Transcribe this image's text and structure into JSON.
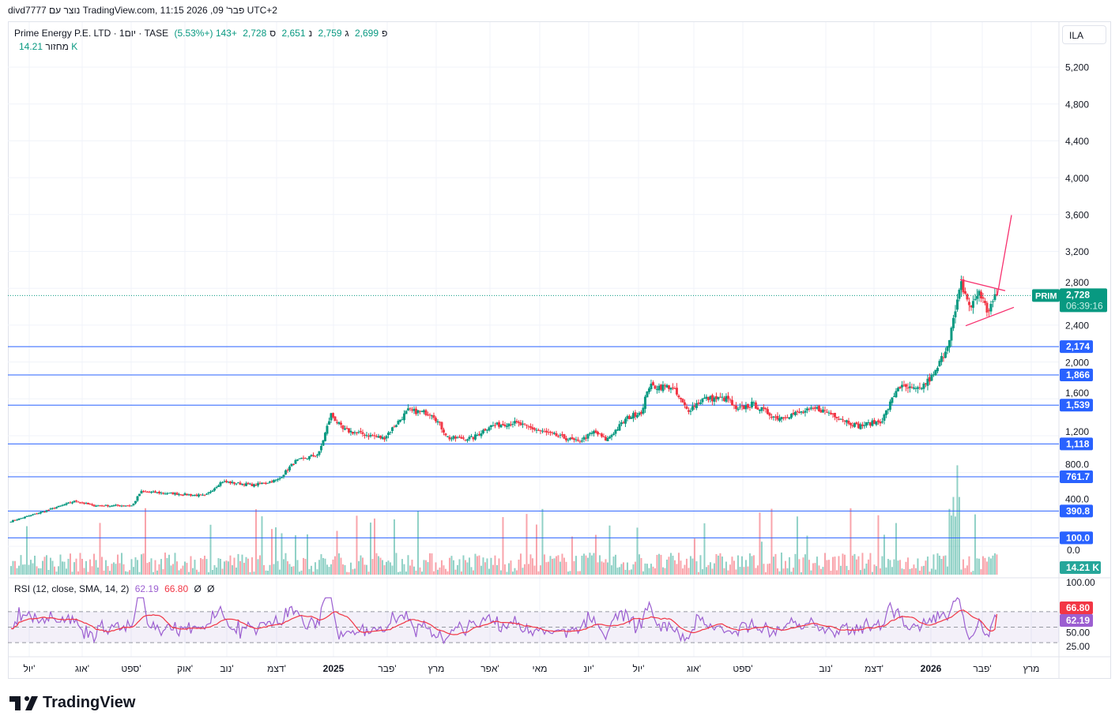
{
  "header": {
    "attribution": "divd7777 נוצר עם TradingView.com, פבר' 09, 2026 11:15 UTC+2"
  },
  "legend": {
    "symbol": "Prime Energy P.E. LTD · 1יום · TASE",
    "open_label": "פ",
    "open": "2,699",
    "high_label": "ג",
    "high": "2,759",
    "low_label": "נ",
    "low": "2,651",
    "close_label": "ס",
    "close": "2,728",
    "change": "+143 (+5.53%)",
    "volume_label": "מחזור",
    "volume": "14.21 K"
  },
  "currency": "ILA",
  "price_axis": {
    "ticks": [
      "5,200",
      "4,800",
      "4,400",
      "4,000",
      "3,600",
      "3,200",
      "2,800",
      "2,400",
      "2,000",
      "1,600",
      "1,200",
      "800.0",
      "400.0"
    ],
    "last_price": "2,728",
    "countdown": "06:39:16",
    "ticker": "PRIM",
    "volume_label": "14.21 K",
    "volume_zero": "0.0"
  },
  "levels": [
    {
      "label": "2,174",
      "value": 2174
    },
    {
      "label": "1,866",
      "value": 1866
    },
    {
      "label": "1,539",
      "value": 1539
    },
    {
      "label": "1,118",
      "value": 1118
    },
    {
      "label": "761.7",
      "value": 761.7
    },
    {
      "label": "390.8",
      "value": 390.8
    },
    {
      "label": "100.0",
      "value": 100
    }
  ],
  "rsi": {
    "title": "RSI (12, close, SMA, 14, 2)",
    "value": "62.19",
    "sma": "66.80",
    "extra1": "Ø",
    "extra2": "Ø",
    "ticks": [
      "100.00",
      "50.00",
      "25.00"
    ],
    "rsi_label": "62.19",
    "sma_label": "66.80"
  },
  "time_axis": [
    "יול'",
    "אוג'",
    "ספט'",
    "אוק'",
    "נוב'",
    "דצמ'",
    "2025",
    "פבר'",
    "מרץ",
    "אפר'",
    "מאי",
    "יונ'",
    "יול'",
    "אוג'",
    "ספט'",
    "נוב'",
    "דצמ'",
    "2026",
    "פבר'",
    "מרץ"
  ],
  "branding": "TradingView",
  "colors": {
    "up": "#089981",
    "down": "#f23645",
    "level": "#2962ff",
    "rsi": "#9c5fd1",
    "rsi_sma": "#f23645",
    "drawing": "#f7306e"
  },
  "chart_data": {
    "type": "candlestick",
    "title": "Prime Energy P.E. LTD · 1D · TASE",
    "ylim": [
      0,
      5600
    ],
    "x_range": [
      "2024-06",
      "2026-03"
    ],
    "close_path": [
      [
        0,
        280
      ],
      [
        4,
        385
      ],
      [
        8,
        500
      ],
      [
        10,
        450
      ],
      [
        15,
        450
      ],
      [
        16,
        600
      ],
      [
        18,
        590
      ],
      [
        24,
        556
      ],
      [
        26,
        710
      ],
      [
        30,
        670
      ],
      [
        33,
        730
      ],
      [
        35,
        925
      ],
      [
        38,
        1010
      ],
      [
        39.5,
        1440
      ],
      [
        41,
        1270
      ],
      [
        46,
        1180
      ],
      [
        49,
        1480
      ],
      [
        52,
        1450
      ],
      [
        54,
        1180
      ],
      [
        57,
        1180
      ],
      [
        59,
        1310
      ],
      [
        62,
        1350
      ],
      [
        66,
        1240
      ],
      [
        70,
        1140
      ],
      [
        72,
        1250
      ],
      [
        73.5,
        1160
      ],
      [
        76,
        1395
      ],
      [
        78,
        1480
      ],
      [
        78.6,
        1740
      ],
      [
        81.5,
        1740
      ],
      [
        83.5,
        1480
      ],
      [
        85.5,
        1610
      ],
      [
        88.5,
        1610
      ],
      [
        89.5,
        1480
      ],
      [
        91.5,
        1550
      ],
      [
        94.5,
        1400
      ],
      [
        99.5,
        1500
      ],
      [
        101.5,
        1440
      ],
      [
        104.5,
        1310
      ],
      [
        107.5,
        1370
      ],
      [
        108.5,
        1550
      ],
      [
        109.5,
        1740
      ],
      [
        112,
        1700
      ],
      [
        114,
        1870
      ],
      [
        115.5,
        2170
      ],
      [
        116.5,
        2510
      ],
      [
        117.3,
        2850
      ],
      [
        118.5,
        2590
      ],
      [
        119.5,
        2780
      ],
      [
        120.5,
        2560
      ],
      [
        121.7,
        2728
      ]
    ],
    "annotations": {
      "triangle_top": [
        2900,
        2780
      ],
      "triangle_bottom": [
        2400,
        2600
      ],
      "target_line_end": 3600
    }
  }
}
